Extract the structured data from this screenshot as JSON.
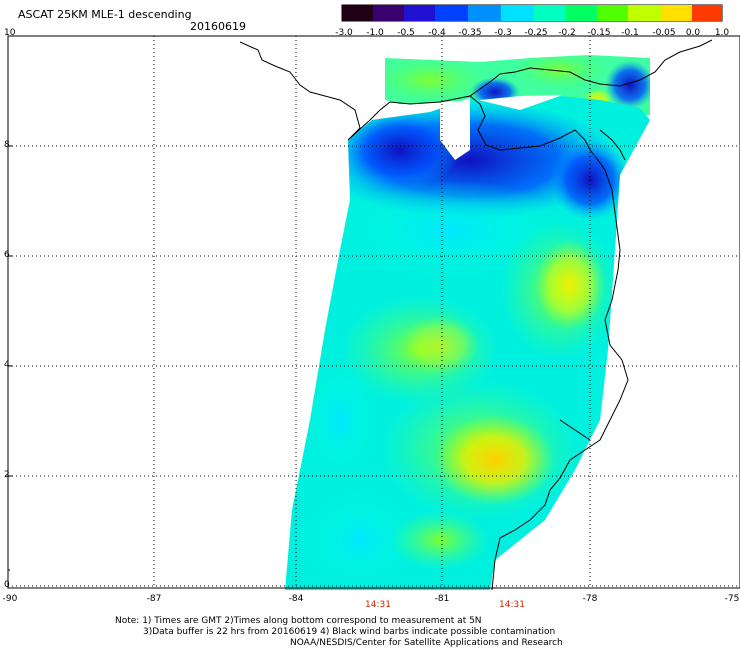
{
  "title": "ASCAT 25KM MLE-1 descending",
  "date": "20160619",
  "colorbar": {
    "labels": [
      "-3.0",
      "-1.0",
      "-0.5",
      "-0.4",
      "-0.35",
      "-0.3",
      "-0.25",
      "-0.2",
      "-0.15",
      "-0.1",
      "-0.05",
      "0.0",
      "1.0"
    ],
    "colors": [
      "#1a0010",
      "#3a0060",
      "#3000c0",
      "#0030ff",
      "#0080ff",
      "#00d0ff",
      "#00ffd0",
      "#00ff60",
      "#40ff00",
      "#a0ff00",
      "#ffff00",
      "#ffa000",
      "#ff3000"
    ]
  },
  "map": {
    "lat_ticks": [
      "10",
      "8",
      "6",
      "4",
      "2",
      "0"
    ],
    "lon_ticks": [
      "-90",
      "-87",
      "-84",
      "-81",
      "-78",
      "-75"
    ],
    "times": [
      "14:31",
      "14:31"
    ]
  },
  "notes": {
    "line1": "Note: 1) Times are GMT 2)Times along bottom correspond to measurement at 5N",
    "line2": "3)Data buffer is 22 hrs from 20160619 4) Black wind barbs indicate possible contamination",
    "line3": "NOAA/NESDIS/Center for Satellite Applications and Research"
  }
}
